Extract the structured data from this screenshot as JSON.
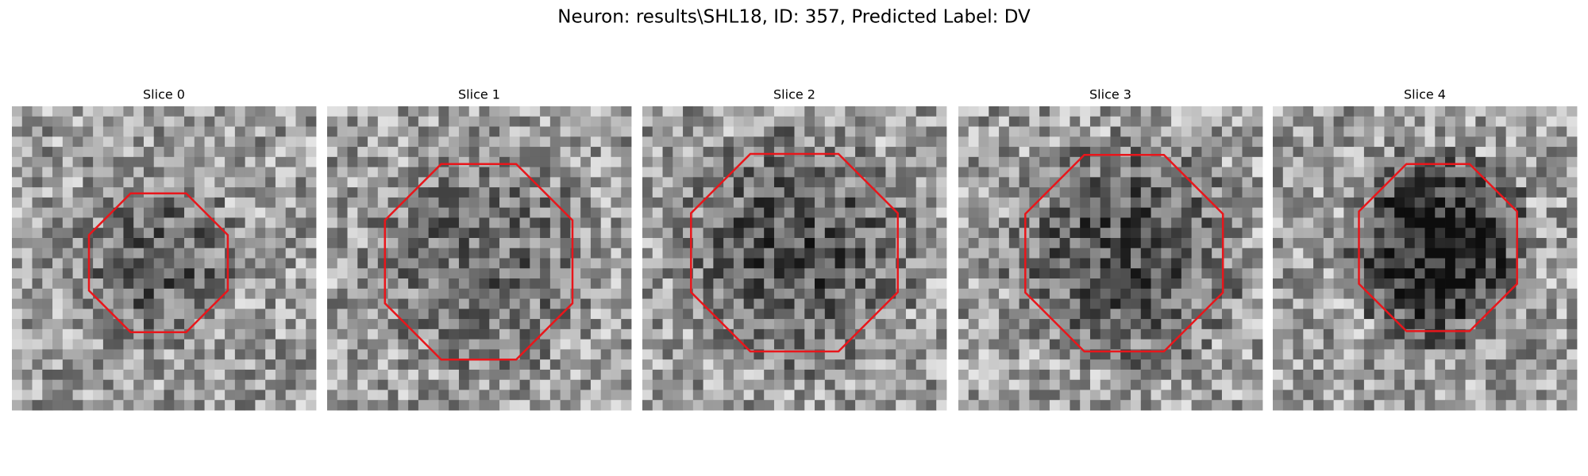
{
  "title": "Neuron: results\\SHL18, ID: 357, Predicted Label: DV",
  "panels": [
    {
      "title": "Slice 0"
    },
    {
      "title": "Slice 1"
    },
    {
      "title": "Slice 2"
    },
    {
      "title": "Slice 3"
    },
    {
      "title": "Slice 4"
    }
  ]
}
